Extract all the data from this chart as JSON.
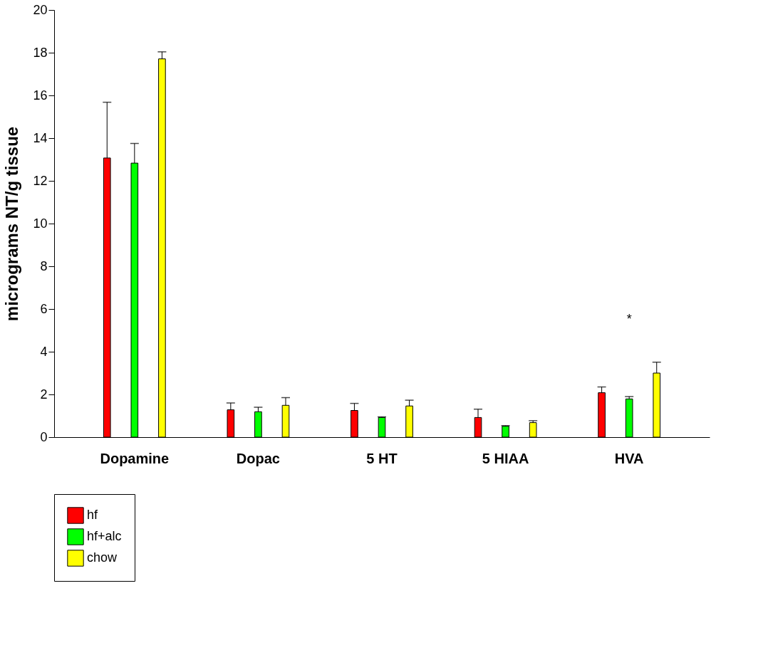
{
  "chart_data": {
    "type": "bar",
    "ylabel": "micrograms NT/g tissue",
    "categories": [
      "Dopamine",
      "Dopac",
      "5 HT",
      "5 HIAA",
      "HVA"
    ],
    "series": [
      {
        "name": "hf",
        "color": "#ff0000",
        "values": [
          13.07,
          1.28,
          1.25,
          0.92,
          2.08
        ],
        "errors": [
          [
            13.07,
            15.68
          ],
          [
            1.28,
            1.6
          ],
          [
            1.25,
            1.58
          ],
          [
            0.92,
            1.31
          ],
          [
            2.08,
            2.35
          ]
        ]
      },
      {
        "name": "hf+alc",
        "color": "#00ff00",
        "values": [
          12.83,
          1.19,
          0.92,
          0.51,
          1.79
        ],
        "errors": [
          [
            12.83,
            13.75
          ],
          [
            1.19,
            1.4
          ],
          [
            0.92,
            0.95
          ],
          [
            0.51,
            0.54
          ],
          [
            1.79,
            1.9
          ]
        ]
      },
      {
        "name": "chow",
        "color": "#ffff00",
        "values": [
          17.71,
          1.49,
          1.46,
          0.68,
          3.0
        ],
        "errors": [
          [
            17.71,
            18.04
          ],
          [
            1.49,
            1.85
          ],
          [
            1.46,
            1.73
          ],
          [
            0.68,
            0.77
          ],
          [
            3.0,
            3.51
          ]
        ]
      }
    ],
    "ylim": [
      0,
      20
    ],
    "yticks": [
      0,
      2,
      4,
      6,
      8,
      10,
      12,
      14,
      16,
      18,
      20
    ],
    "annotations": [
      "*"
    ],
    "grid": false,
    "legend": "bottom left"
  }
}
